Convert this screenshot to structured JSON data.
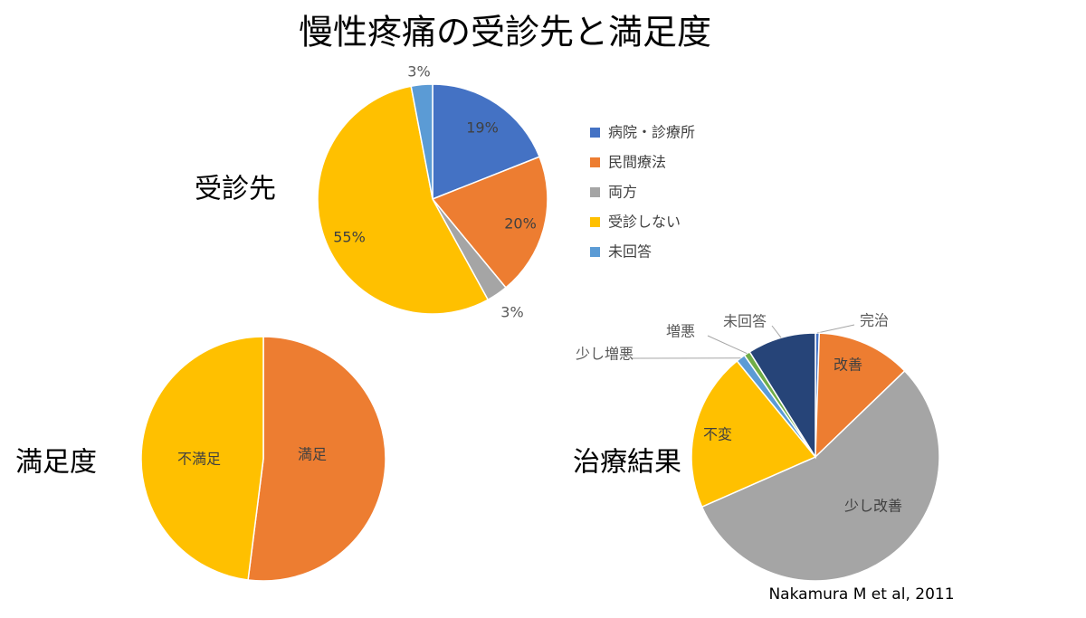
{
  "title": "慢性疼痛の受診先と満足度",
  "source": "Nakamura M et al, 2011",
  "chart_data": [
    {
      "type": "pie",
      "title": "受診先",
      "categories": [
        "病院・診療所",
        "民間療法",
        "両方",
        "受診しない",
        "未回答"
      ],
      "values": [
        19,
        20,
        3,
        55,
        3
      ],
      "value_labels": [
        "19%",
        "20%",
        "3%",
        "55%",
        "3%"
      ],
      "colors": [
        "#4472c4",
        "#ed7d31",
        "#a5a5a5",
        "#ffc000",
        "#5b9bd5"
      ],
      "legend": "right"
    },
    {
      "type": "pie",
      "title": "満足度",
      "categories": [
        "満足",
        "不満足"
      ],
      "values": [
        52,
        48
      ],
      "colors": [
        "#ed7d31",
        "#ffc000"
      ]
    },
    {
      "type": "pie",
      "title": "治療結果",
      "categories": [
        "完治",
        "改善",
        "少し改善",
        "不変",
        "少し増悪",
        "増悪",
        "未回答"
      ],
      "values": [
        0.5,
        12.3,
        55.6,
        20.7,
        1.2,
        0.8,
        8.9
      ],
      "colors": [
        "#4472c4",
        "#ed7d31",
        "#a5a5a5",
        "#ffc000",
        "#5b9bd5",
        "#70ad47",
        "#264478"
      ]
    }
  ]
}
